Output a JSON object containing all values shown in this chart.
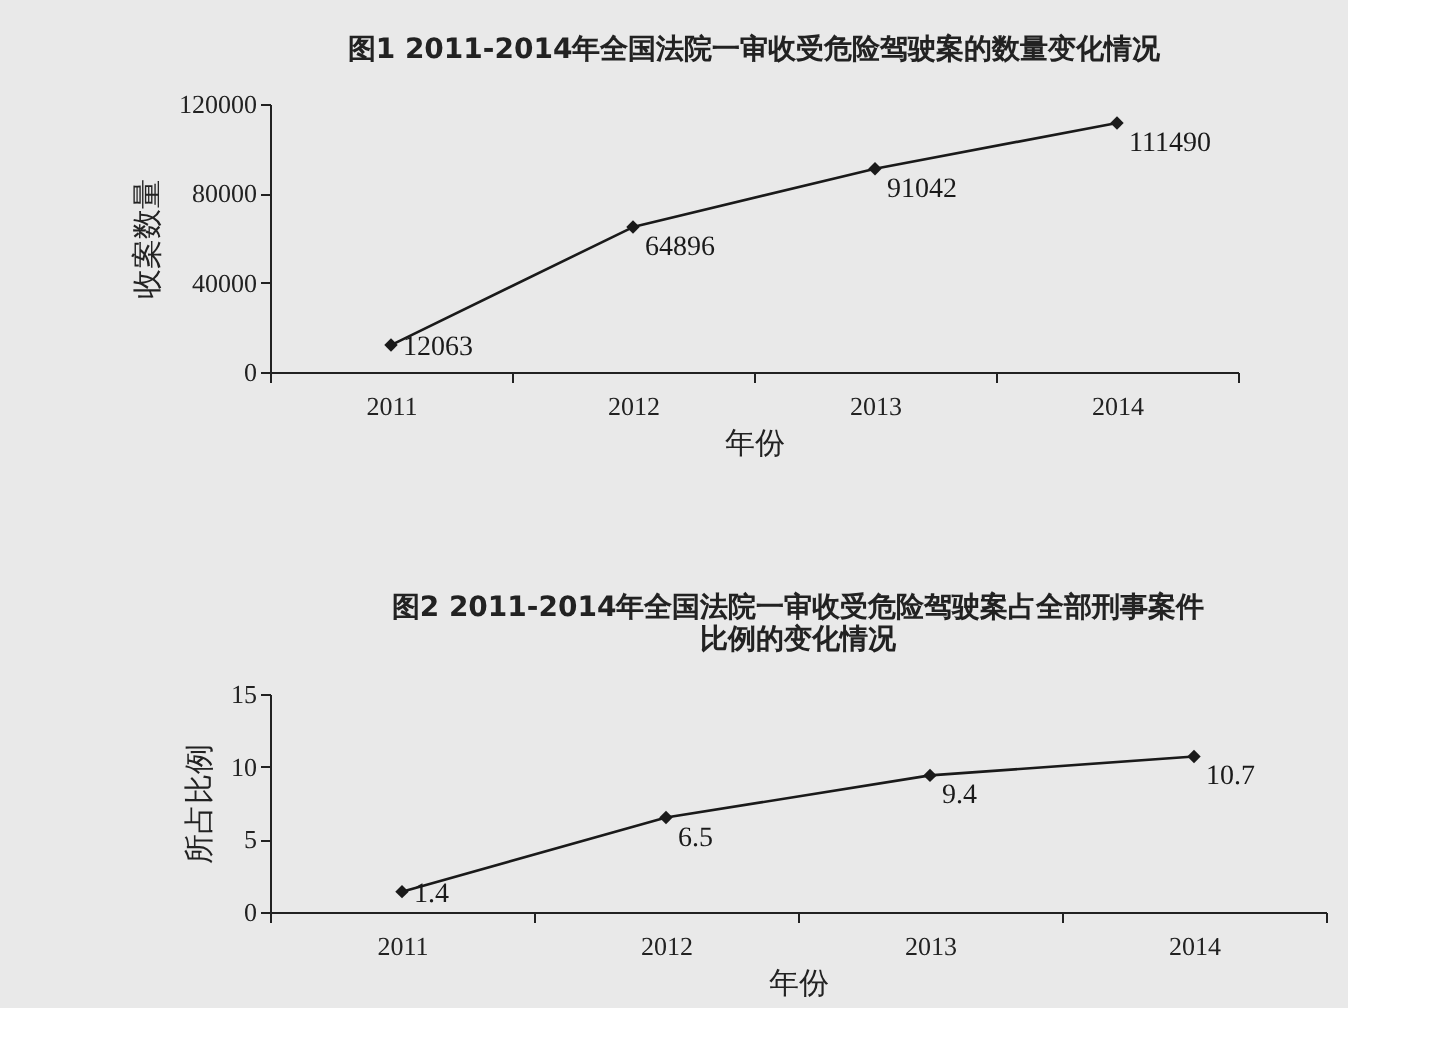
{
  "chart_data": [
    {
      "type": "line",
      "title": "图1 2011-2014年全国法院一审收受危险驾驶案的数量变化情况",
      "xlabel": "年份",
      "ylabel": "收案数量",
      "categories": [
        "2011",
        "2012",
        "2013",
        "2014"
      ],
      "values": [
        12063,
        64896,
        91042,
        111490
      ],
      "color": "#1a1a1a",
      "ylim": [
        0,
        120000
      ],
      "yticks": [
        0,
        40000,
        80000,
        120000
      ],
      "data_labels": true,
      "marker": "diamond",
      "line_style": "solid"
    },
    {
      "type": "line",
      "title": "图2 2011-2014年全国法院一审收受危险驾驶案占全部刑事案件比例的变化情况",
      "xlabel": "年份",
      "ylabel": "所占比例",
      "categories": [
        "2011",
        "2012",
        "2013",
        "2014"
      ],
      "values": [
        1.4,
        6.5,
        9.4,
        10.7
      ],
      "color": "#1a1a1a",
      "ylim": [
        0,
        15
      ],
      "yticks": [
        0,
        5,
        10,
        15
      ],
      "data_labels": true,
      "marker": "diamond",
      "line_style": "solid"
    }
  ]
}
